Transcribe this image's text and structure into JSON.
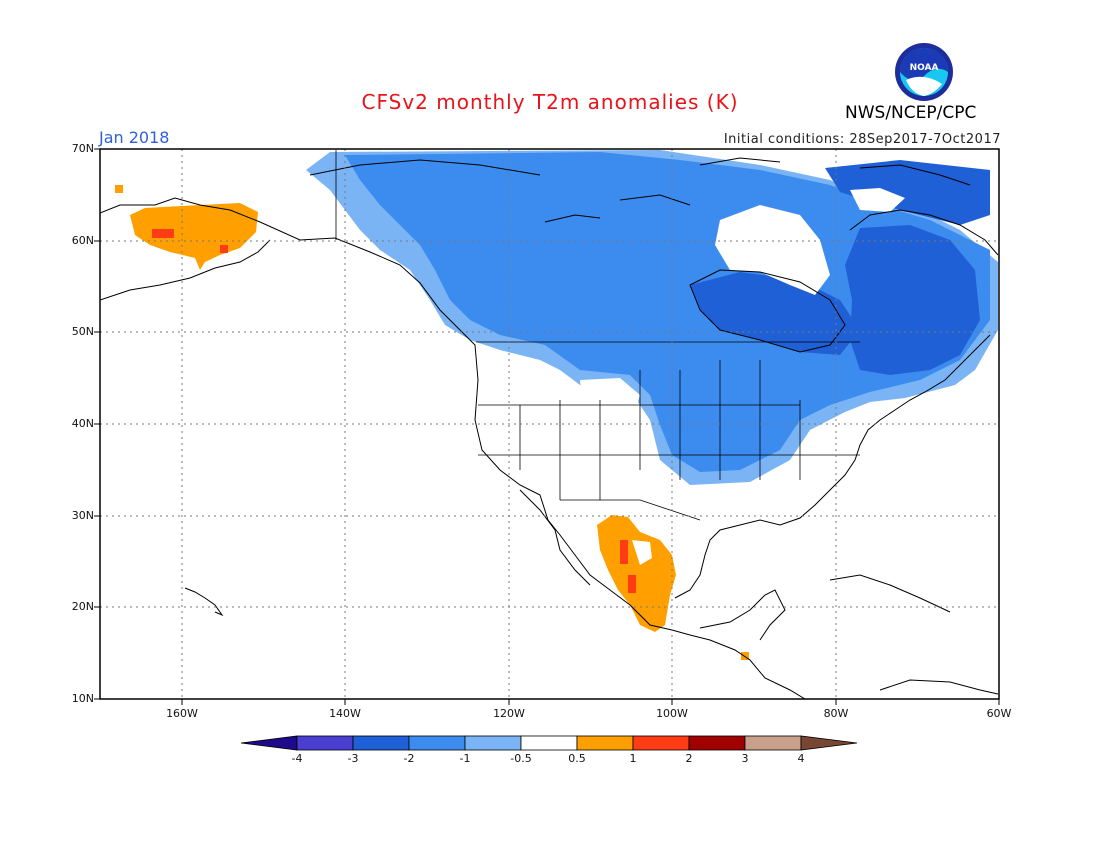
{
  "header": {
    "title": "CFSv2 monthly T2m anomalies (K)",
    "month": "Jan 2018",
    "initial_conditions": "Initial conditions: 28Sep2017-7Oct2017",
    "agency": "NWS/NCEP/CPC",
    "logo_text": "NOAA"
  },
  "map": {
    "lon_range": [
      -170,
      -60
    ],
    "lat_range": [
      10,
      70
    ],
    "lat_labels": [
      "10N",
      "20N",
      "30N",
      "40N",
      "50N",
      "60N",
      "70N"
    ],
    "lon_labels": [
      "160W",
      "140W",
      "120W",
      "100W",
      "80W",
      "60W"
    ]
  },
  "colorbar": {
    "labels": [
      "-4",
      "-3",
      "-2",
      "-1",
      "-0.5",
      "0.5",
      "1",
      "2",
      "3",
      "4"
    ],
    "colors": [
      "#1e0a8a",
      "#4a3fd0",
      "#2060d6",
      "#3c8cf0",
      "#7ab4f5",
      "#ffffff",
      "#ffa000",
      "#ff3c14",
      "#a00000",
      "#c8a08c",
      "#784632"
    ]
  },
  "anomalies": {
    "colors": {
      "light_blue": "#7ab4f5",
      "blue": "#3c8cf0",
      "dark_blue": "#2060d6",
      "orange": "#ffa000",
      "red": "#ff3c14"
    },
    "summary": [
      {
        "region": "Canada and northern United States",
        "category": "-1 to -2"
      },
      {
        "region": "Hudson Bay and Quebec",
        "category": "-2 to -3"
      },
      {
        "region": "Alaska",
        "category": "0.5 to 1"
      },
      {
        "region": "Western Mexico",
        "category": "0.5 to 2"
      }
    ]
  }
}
